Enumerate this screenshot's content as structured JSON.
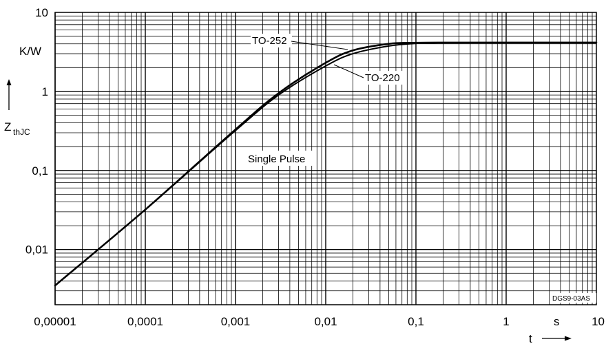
{
  "chart_data": {
    "type": "line",
    "title": "",
    "xlabel": "t",
    "xunit": "s",
    "ylabel_main": "Z",
    "ylabel_sub": "thJC",
    "yunit": "K/W",
    "x_scale": "log",
    "y_scale": "log",
    "xlim": [
      1e-05,
      10
    ],
    "ylim": [
      0.002,
      10
    ],
    "grid": true,
    "legend": "none",
    "x_ticks": [
      "0,00001",
      "0,0001",
      "0,001",
      "0,01",
      "0,1",
      "1",
      "10"
    ],
    "x_tick_values": [
      1e-05,
      0.0001,
      0.001,
      0.01,
      0.1,
      1,
      10
    ],
    "y_ticks": [
      "0,01",
      "0,1",
      "1",
      "10"
    ],
    "y_tick_values": [
      0.01,
      0.1,
      1,
      10
    ],
    "annotations": {
      "single_pulse": "Single Pulse",
      "code": "DGS9-03AS"
    },
    "series": [
      {
        "name": "TO-252",
        "x": [
          1e-05,
          0.0001,
          0.001,
          0.003,
          0.01,
          0.02,
          0.05,
          0.1,
          0.2,
          1,
          10
        ],
        "y": [
          0.0035,
          0.032,
          0.33,
          0.95,
          2.3,
          3.3,
          4.0,
          4.12,
          4.15,
          4.15,
          4.15
        ]
      },
      {
        "name": "TO-220",
        "x": [
          1e-05,
          0.0001,
          0.001,
          0.003,
          0.01,
          0.02,
          0.05,
          0.1,
          0.2,
          1,
          10
        ],
        "y": [
          0.0035,
          0.032,
          0.32,
          0.9,
          2.1,
          3.0,
          3.75,
          4.05,
          4.13,
          4.15,
          4.15
        ]
      }
    ]
  }
}
